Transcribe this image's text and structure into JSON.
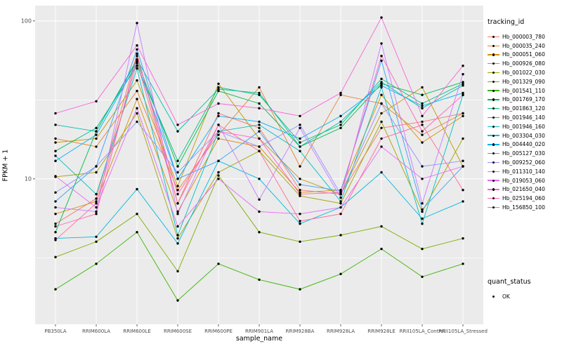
{
  "chart_data": {
    "type": "line",
    "title": "",
    "xlabel": "sample_name",
    "ylabel": "FPKM + 1",
    "y_scale": "log10",
    "ylim": [
      1.2,
      125
    ],
    "y_major_ticks": [
      100,
      10
    ],
    "y_minor_ticks": [
      31.623,
      3.1623
    ],
    "grid": true,
    "panel_background": "#EBEBEB",
    "grid_color": "#FFFFFF",
    "point_color": "#000000",
    "legend_position": "right",
    "legend_title": "tracking_id",
    "x_categories": [
      "PB350LA",
      "RRIM600LA",
      "RRIM600LE",
      "RRIM600SE",
      "RRIM600PE",
      "RRIM901LA",
      "RRIM928BA",
      "RRIM928LA",
      "RRIM928LE",
      "RRII105LA_Control",
      "RRII105LA_Stressed"
    ],
    "series": [
      {
        "name": "Hb_000003_780",
        "color": "#F8766D",
        "values": [
          5.2,
          7.5,
          62,
          7.0,
          26,
          21,
          8.5,
          8.0,
          21,
          23,
          26
        ]
      },
      {
        "name": "Hb_000035_240",
        "color": "#EA8331",
        "values": [
          18,
          16,
          36,
          8.5,
          19,
          38,
          12,
          34,
          30,
          19,
          26
        ]
      },
      {
        "name": "Hb_000051_060",
        "color": "#D89000",
        "values": [
          6.0,
          7.2,
          32,
          6.2,
          18,
          16,
          8.2,
          8.5,
          34,
          17,
          25
        ]
      },
      {
        "name": "Hb_000926_080",
        "color": "#C09B00",
        "values": [
          17,
          18,
          42,
          9.0,
          40,
          18,
          10,
          8.0,
          26,
          38,
          12
        ]
      },
      {
        "name": "Hb_001022_030",
        "color": "#A3A500",
        "values": [
          10.3,
          11,
          26,
          4.2,
          11,
          15,
          7.8,
          7.0,
          23,
          6.2,
          18
        ]
      },
      {
        "name": "Hb_001329_090",
        "color": "#7CAE00",
        "values": [
          3.2,
          4.0,
          6.0,
          2.6,
          10.5,
          4.6,
          4.0,
          4.4,
          5.0,
          3.6,
          4.2
        ]
      },
      {
        "name": "Hb_001541_110",
        "color": "#39B600",
        "values": [
          2.0,
          2.9,
          4.6,
          1.7,
          2.9,
          2.3,
          2.0,
          2.5,
          3.6,
          2.4,
          2.9
        ]
      },
      {
        "name": "Hb_001769_170",
        "color": "#00BB4E",
        "values": [
          4.6,
          20,
          56,
          12,
          36,
          30,
          16,
          21,
          40,
          34,
          41
        ]
      },
      {
        "name": "Hb_001863_120",
        "color": "#00BF7D",
        "values": [
          15,
          21,
          52,
          13,
          38,
          34,
          17,
          22,
          43,
          30,
          40
        ]
      },
      {
        "name": "Hb_001946_140",
        "color": "#00C1A3",
        "values": [
          22,
          20,
          57,
          20,
          37,
          35,
          16,
          23,
          41,
          28,
          39
        ]
      },
      {
        "name": "Hb_001946_160",
        "color": "#00BFC4",
        "values": [
          14,
          8.0,
          50,
          4.4,
          20,
          22,
          15,
          7.2,
          38,
          5.2,
          34
        ]
      },
      {
        "name": "Hb_003304_030",
        "color": "#00BAE0",
        "values": [
          4.2,
          4.3,
          8.6,
          3.9,
          13,
          10,
          5.2,
          6.6,
          11,
          5.6,
          7.2
        ]
      },
      {
        "name": "Hb_004440_020",
        "color": "#00B0F6",
        "values": [
          13,
          19,
          54,
          10,
          25,
          23,
          18,
          25,
          39,
          29,
          35
        ]
      },
      {
        "name": "Hb_005127_030",
        "color": "#35A2FF",
        "values": [
          7.2,
          12,
          66,
          10,
          13,
          20,
          9.2,
          8.4,
          56,
          6.4,
          12
        ]
      },
      {
        "name": "Hb_009252_060",
        "color": "#9590FF",
        "values": [
          8.2,
          12,
          23,
          11,
          20,
          16,
          22,
          8.0,
          30,
          12,
          13
        ]
      },
      {
        "name": "Hb_011310_140",
        "color": "#C77CFF",
        "values": [
          6.6,
          6.2,
          97,
          6.0,
          22,
          7.4,
          21,
          7.6,
          72,
          7.0,
          46
        ]
      },
      {
        "name": "Hb_019053_060",
        "color": "#E76BF3",
        "values": [
          10.4,
          6.6,
          28,
          5.0,
          10,
          6.2,
          6.0,
          6.6,
          16,
          10,
          12
        ]
      },
      {
        "name": "Hb_021650_040",
        "color": "#FA62DB",
        "values": [
          26,
          31,
          70,
          22,
          30,
          28,
          25,
          35,
          105,
          25,
          52
        ]
      },
      {
        "name": "Hb_025194_060",
        "color": "#FF62BC",
        "values": [
          5.0,
          6.0,
          60,
          8.0,
          20,
          18,
          8.0,
          8.2,
          60,
          20,
          34
        ]
      },
      {
        "name": "Hb_156850_100",
        "color": "#FF6A98",
        "values": [
          4.1,
          7.0,
          55,
          7.0,
          22,
          15,
          5.4,
          6.0,
          18,
          22,
          8.5
        ]
      }
    ],
    "quant_status": {
      "title": "quant_status",
      "items": [
        {
          "label": "OK",
          "marker": "point",
          "color": "#000000"
        }
      ]
    }
  }
}
